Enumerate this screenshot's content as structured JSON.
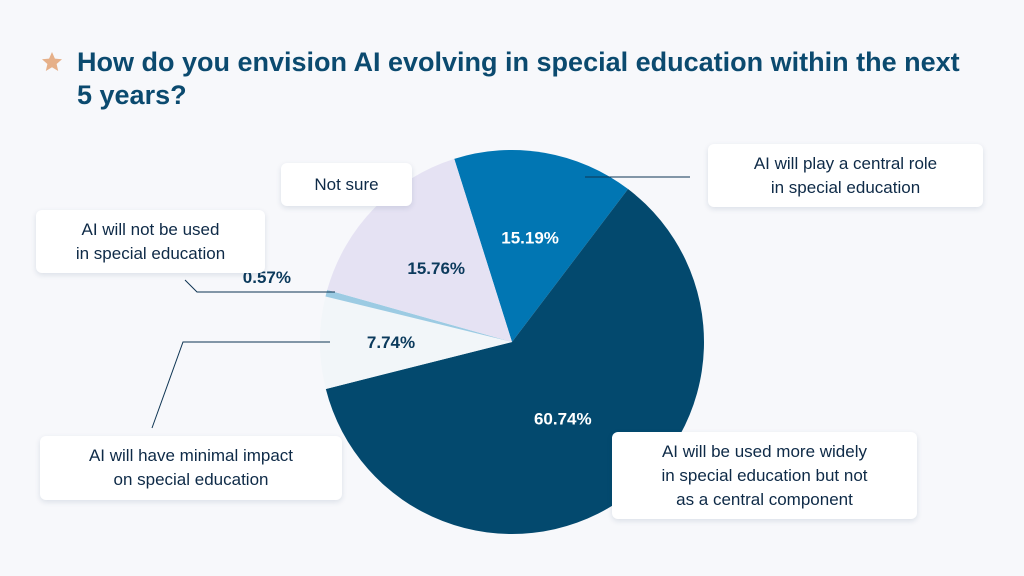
{
  "title": "How do you envision AI evolving in special education within the next 5 years?",
  "icons": {
    "title": "star-icon"
  },
  "colors": {
    "title": "#0b4a6f",
    "star": "#e6b089",
    "leader": "#0e3553"
  },
  "chart_data": {
    "type": "pie",
    "title": "How do you envision AI evolving in special education within the next 5 years?",
    "slices": [
      {
        "label": "AI will play a central role in special education",
        "value": 15.19,
        "display": "15.19%",
        "color": "#0176b3",
        "text_color": "#ffffff"
      },
      {
        "label": "AI will be used more widely in special education but not as a central component",
        "value": 60.74,
        "display": "60.74%",
        "color": "#03496e",
        "text_color": "#ffffff"
      },
      {
        "label": "AI will have minimal impact on special education",
        "value": 7.74,
        "display": "7.74%",
        "color": "#f2f6f9",
        "text_color": "#0b3a5c"
      },
      {
        "label": "AI will not be used in special education",
        "value": 0.57,
        "display": "0.57%",
        "color": "#9ccbe3",
        "text_color": "#0b3a5c"
      },
      {
        "label": "Not sure",
        "value": 15.76,
        "display": "15.76%",
        "color": "#e5e2f3",
        "text_color": "#0b3a5c"
      }
    ]
  },
  "callouts": {
    "central": {
      "line1": "AI will play a central role",
      "line2": "in special education"
    },
    "wider": {
      "line1": "AI will be used more widely",
      "line2": "in special education but not",
      "line3": "as a central component"
    },
    "minimal": {
      "line1": "AI will have minimal impact",
      "line2": "on special education"
    },
    "not_used": {
      "line1": "AI will not be used",
      "line2": "in special education"
    },
    "not_sure": {
      "line1": "Not sure"
    }
  }
}
